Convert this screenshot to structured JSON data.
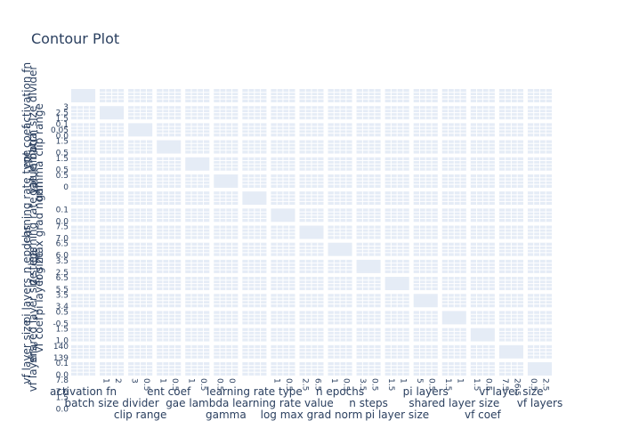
{
  "chart_data": {
    "type": "contour",
    "title": "Contour Plot",
    "params": [
      "activation fn",
      "batch size divider",
      "clip range",
      "ent coef",
      "gae lambda",
      "gamma",
      "learning rate type",
      "learning rate value",
      "log max grad norm",
      "n epochs",
      "n steps",
      "pi layer size",
      "pi layers",
      "shared layer size",
      "vf coef",
      "vf layer size",
      "vf layers"
    ],
    "col_ticks": [
      [],
      [
        "1",
        "2"
      ],
      [
        "3",
        "0.5"
      ],
      [
        "1",
        "0.5"
      ],
      [
        "1",
        "0.5"
      ],
      [
        "0.5",
        "0"
      ],
      [],
      [
        "1",
        "0.5"
      ],
      [
        "2.5",
        "6.5"
      ],
      [
        "1",
        "0.5"
      ],
      [
        "3.5",
        "0.5"
      ],
      [
        "1.5",
        "1"
      ],
      [
        "5",
        "0.5"
      ],
      [
        "1.5",
        "1"
      ],
      [
        "1.5",
        "0.5"
      ],
      [
        "7.5",
        "26.5"
      ],
      [
        "0.5",
        "2.5"
      ]
    ],
    "row_tick_groups": [
      {
        "row": 1,
        "labels": [
          "3",
          "2.5",
          "1.5"
        ]
      },
      {
        "row": 2,
        "labels": [
          "0.1",
          "0.05",
          "0.0"
        ]
      },
      {
        "row": 3,
        "labels": [
          "1.5",
          "0.5"
        ]
      },
      {
        "row": 4,
        "labels": [
          "1.5",
          "0.5"
        ]
      },
      {
        "row": 5,
        "labels": [
          "0.5",
          "0"
        ]
      },
      {
        "row": 7,
        "labels": [
          "0.1",
          "0.0"
        ]
      },
      {
        "row": 8,
        "labels": [
          "7.5",
          "7.0"
        ]
      },
      {
        "row": 9,
        "labels": [
          "6.5",
          "6.0"
        ]
      },
      {
        "row": 10,
        "labels": [
          "3.5",
          "2.5"
        ]
      },
      {
        "row": 11,
        "labels": [
          "6.5",
          "5.5"
        ]
      },
      {
        "row": 12,
        "labels": [
          "3.5",
          "3.4"
        ]
      },
      {
        "row": 13,
        "labels": [
          "0.5",
          "-0.5"
        ]
      },
      {
        "row": 14,
        "labels": [
          "1.5",
          "1.0"
        ]
      },
      {
        "row": 15,
        "labels": [
          "140",
          "139"
        ]
      },
      {
        "row": 16,
        "labels": [
          "0.1",
          "0.0"
        ]
      },
      {
        "row": 17,
        "labels": [
          "7.8",
          "7.6"
        ]
      },
      {
        "row": 18,
        "labels": [
          "1.5",
          "0.0"
        ]
      }
    ]
  }
}
